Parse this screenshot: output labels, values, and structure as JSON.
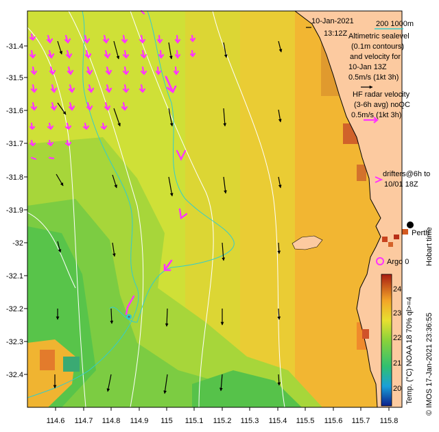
{
  "header": {
    "date": "10-Jan-2021",
    "time": "13:12Z"
  },
  "scale": {
    "isobaths": "200  1000m"
  },
  "legend": {
    "sealevel_lines": [
      "Altimetric sealevel",
      "(0.1m contours)",
      "and velocity for",
      "10-Jan 13Z"
    ],
    "sealevel_scale": "0.5m/s (1kt 3h)",
    "radar_lines": [
      "HF radar velocity",
      "(3-6h avg) noQC"
    ],
    "radar_scale": "0.5m/s (1kt 3h)",
    "drifter_lines": [
      "drifters@6h to",
      "10/01 18Z"
    ],
    "argo": "Argo 0",
    "city": "Perth",
    "hobart": "Hobart time"
  },
  "colorbar": {
    "ticks": [
      "24",
      "23",
      "22",
      "21",
      "20"
    ],
    "label": "Temp. (°C) NOAA 18 70% ql>=4",
    "credit": "© IMOS 17-Jan-2021 23:36:55"
  },
  "axes": {
    "y_ticks": [
      "-31.4",
      "-31.5",
      "-31.6",
      "-31.7",
      "-31.8",
      "-31.9",
      "-32",
      "-32.1",
      "-32.2",
      "-32.3",
      "-32.4"
    ],
    "x_ticks": [
      "114.6",
      "114.7",
      "114.8",
      "114.9",
      "115",
      "115.1",
      "115.2",
      "115.3",
      "115.4",
      "115.5",
      "115.6",
      "115.7",
      "115.8"
    ]
  },
  "colors": {
    "land": "#fccaa0",
    "sst_warm": "#f2b632",
    "sst_mid": "#d6e132",
    "sst_cool": "#5cc64a",
    "radar": "#ff33ff",
    "isobath": "#33cccc",
    "contour": "#ffffff"
  },
  "icons": [
    "velocity-arrow-icon",
    "radar-arrow-icon",
    "argo-circle-icon",
    "city-dot-icon"
  ]
}
